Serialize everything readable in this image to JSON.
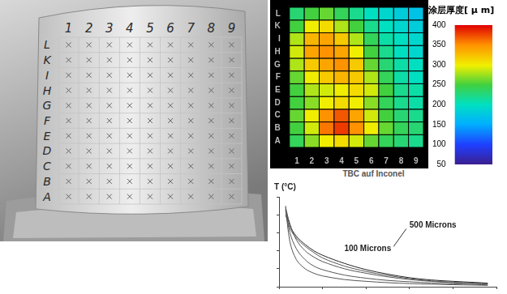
{
  "photo": {
    "column_labels": [
      "1",
      "2",
      "3",
      "4",
      "5",
      "6",
      "7",
      "8",
      "9"
    ],
    "row_labels": [
      "A",
      "B",
      "C",
      "D",
      "E",
      "F",
      "G",
      "H",
      "I",
      "K",
      "L"
    ]
  },
  "chart_data": [
    {
      "type": "heatmap",
      "xlabel": "TBC auf Inconel",
      "categories": [
        "1",
        "2",
        "3",
        "4",
        "5",
        "6",
        "7",
        "8",
        "9"
      ],
      "rows": [
        "A",
        "B",
        "C",
        "D",
        "E",
        "F",
        "G",
        "H",
        "I",
        "K",
        "L"
      ],
      "values": [
        [
          240,
          270,
          300,
          310,
          290,
          260,
          240,
          230,
          220
        ],
        [
          250,
          290,
          360,
          380,
          350,
          300,
          260,
          240,
          230
        ],
        [
          260,
          300,
          350,
          370,
          340,
          290,
          250,
          230,
          220
        ],
        [
          250,
          270,
          300,
          310,
          300,
          270,
          240,
          220,
          210
        ],
        [
          250,
          280,
          290,
          300,
          310,
          290,
          250,
          220,
          210
        ],
        [
          260,
          300,
          320,
          330,
          320,
          280,
          240,
          210,
          200
        ],
        [
          280,
          320,
          340,
          350,
          320,
          260,
          230,
          210,
          200
        ],
        [
          290,
          340,
          350,
          340,
          300,
          250,
          220,
          200,
          190
        ],
        [
          280,
          330,
          340,
          320,
          280,
          240,
          210,
          200,
          190
        ],
        [
          250,
          300,
          310,
          280,
          250,
          220,
          200,
          190,
          180
        ],
        [
          230,
          250,
          260,
          240,
          220,
          200,
          190,
          180,
          170
        ]
      ],
      "colorbar": {
        "title": "涂层厚度[ μ m]",
        "range": [
          50,
          400
        ],
        "ticks": [
          50,
          100,
          150,
          200,
          250,
          300,
          350,
          400
        ]
      }
    },
    {
      "type": "line",
      "ylabel": "T (°C)",
      "x": [
        0.3,
        0.5,
        0.8,
        1.2,
        1.6,
        2,
        3,
        4,
        5,
        6,
        7,
        8,
        9,
        9.6
      ],
      "series": [
        {
          "color": "#555555",
          "values": [
            900,
            500,
            300,
            200,
            150,
            120,
            80,
            60,
            45,
            35,
            28,
            22,
            18,
            15
          ]
        },
        {
          "color": "#555555",
          "values": [
            850,
            600,
            420,
            300,
            230,
            190,
            130,
            95,
            70,
            55,
            42,
            32,
            25,
            20
          ]
        },
        {
          "color": "#555555",
          "values": [
            880,
            700,
            520,
            400,
            330,
            280,
            200,
            150,
            110,
            80,
            60,
            45,
            35,
            30
          ]
        },
        {
          "color": "#555555",
          "values": [
            800,
            650,
            540,
            450,
            380,
            320,
            230,
            170,
            125,
            90,
            65,
            50,
            40,
            35
          ]
        },
        {
          "color": "#222222",
          "values": [
            860,
            680,
            560,
            470,
            400,
            350,
            260,
            190,
            140,
            100,
            75,
            60,
            48,
            40
          ]
        }
      ],
      "xlim": [
        0,
        10
      ],
      "ylim": [
        0,
        1000
      ],
      "xticks": [
        0,
        2,
        4,
        6,
        8,
        10
      ],
      "yticks": [
        0,
        200,
        400,
        600,
        800,
        1000
      ],
      "grid": false,
      "tick_labels": false,
      "annotations": [
        {
          "text": "500 Microns"
        },
        {
          "text": "100 Microns"
        }
      ]
    }
  ]
}
